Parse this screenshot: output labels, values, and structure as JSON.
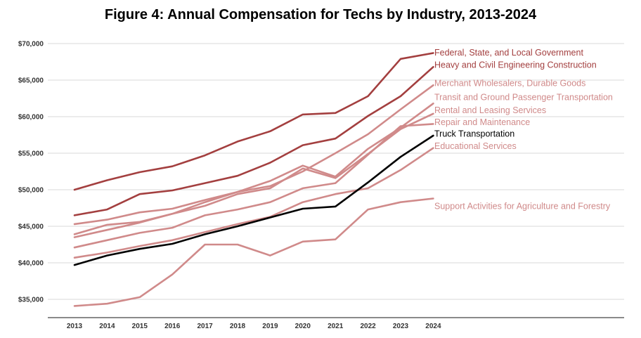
{
  "chart_data": {
    "type": "line",
    "title": "Figure 4: Annual Compensation for Techs by Industry, 2013-2024",
    "xlabel": "",
    "ylabel": "",
    "x": [
      "2013",
      "2014",
      "2015",
      "2016",
      "2017",
      "2018",
      "2019",
      "2020",
      "2021",
      "2022",
      "2023",
      "2024"
    ],
    "ylim": [
      33000,
      72000
    ],
    "yticks": [
      35000,
      40000,
      45000,
      50000,
      55000,
      60000,
      65000,
      70000
    ],
    "ytick_labels": [
      "$35,000",
      "$40,000",
      "$45,000",
      "$50,000",
      "$55,000",
      "$60,000",
      "$65,000",
      "$70,000"
    ],
    "grid": true,
    "legend": "direct labels at line ends (right)",
    "series": [
      {
        "name": "Federal, State, and Local Government",
        "color": "#a33f3f",
        "label_value": 68800,
        "values": [
          50000,
          51300,
          52400,
          53200,
          54700,
          56600,
          58000,
          60300,
          60500,
          62800,
          67900,
          68700
        ]
      },
      {
        "name": "Heavy and Civil Engineering Construction",
        "color": "#a33f3f",
        "label_value": 67100,
        "values": [
          46500,
          47300,
          49400,
          49900,
          50900,
          51900,
          53700,
          56100,
          57000,
          60100,
          62800,
          66800
        ]
      },
      {
        "name": "Merchant Wholesalers, Durable Goods",
        "color": "#d08a8a",
        "label_value": 64600,
        "values": [
          45300,
          45900,
          46900,
          47400,
          48600,
          49700,
          50500,
          52500,
          55000,
          57600,
          61000,
          64300
        ]
      },
      {
        "name": "Transit and Ground Passenger Transportation",
        "color": "#d08a8a",
        "label_value": 62700,
        "values": [
          43900,
          45200,
          45600,
          46700,
          48300,
          49700,
          51200,
          53300,
          51800,
          55600,
          58500,
          61800
        ]
      },
      {
        "name": "Rental and Leasing Services",
        "color": "#d08a8a",
        "label_value": 60900,
        "values": [
          43500,
          44500,
          45500,
          46700,
          47800,
          49400,
          50200,
          52900,
          51600,
          54900,
          58300,
          60400
        ]
      },
      {
        "name": "Repair and Maintenance",
        "color": "#d08a8a",
        "label_value": 59300,
        "values": [
          42100,
          43100,
          44100,
          44800,
          46500,
          47300,
          48300,
          50200,
          50900,
          54800,
          58700,
          59000
        ]
      },
      {
        "name": "Truck Transportation",
        "color": "#000000",
        "label_value": 57700,
        "values": [
          39700,
          41000,
          41900,
          42600,
          43900,
          45000,
          46200,
          47400,
          47700,
          51000,
          54500,
          57400
        ]
      },
      {
        "name": "Educational Services",
        "color": "#d08a8a",
        "label_value": 56000,
        "values": [
          40700,
          41400,
          42300,
          43100,
          44200,
          45300,
          46300,
          48300,
          49400,
          50200,
          52700,
          55700
        ]
      },
      {
        "name": "Support Activities for Agriculture and Forestry",
        "color": "#d08a8a",
        "label_value": 47800,
        "values": [
          34100,
          34400,
          35300,
          38400,
          42500,
          42500,
          41000,
          42900,
          43200,
          47300,
          48300,
          48800
        ]
      }
    ]
  }
}
